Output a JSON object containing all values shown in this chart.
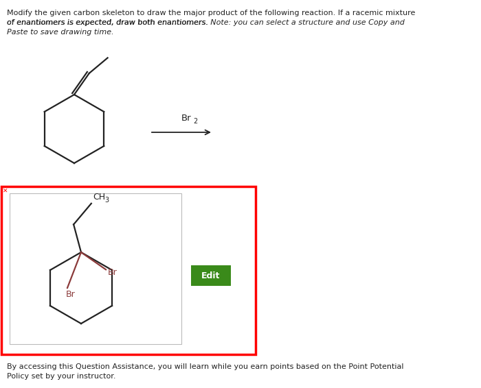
{
  "bg_color": "#ffffff",
  "title_lines": [
    "Modify the given carbon skeleton to draw the major product of the following reaction. If a racemic mixture",
    "of enantiomers is expected, draw both enantiomers. Note: you can select a structure and use Copy and",
    "Paste to save drawing time."
  ],
  "reagent_label": "Br",
  "reagent_sub": "2",
  "br_color": "#8B3A3A",
  "black_color": "#222222",
  "gray_color": "#888888",
  "edit_btn_color": "#3a8a1a",
  "edit_btn_text": "Edit",
  "footer_lines": [
    "By accessing this Question Assistance, you will learn while you earn points based on the Point Potential",
    "Policy set by your instructor."
  ],
  "note_italic": true
}
